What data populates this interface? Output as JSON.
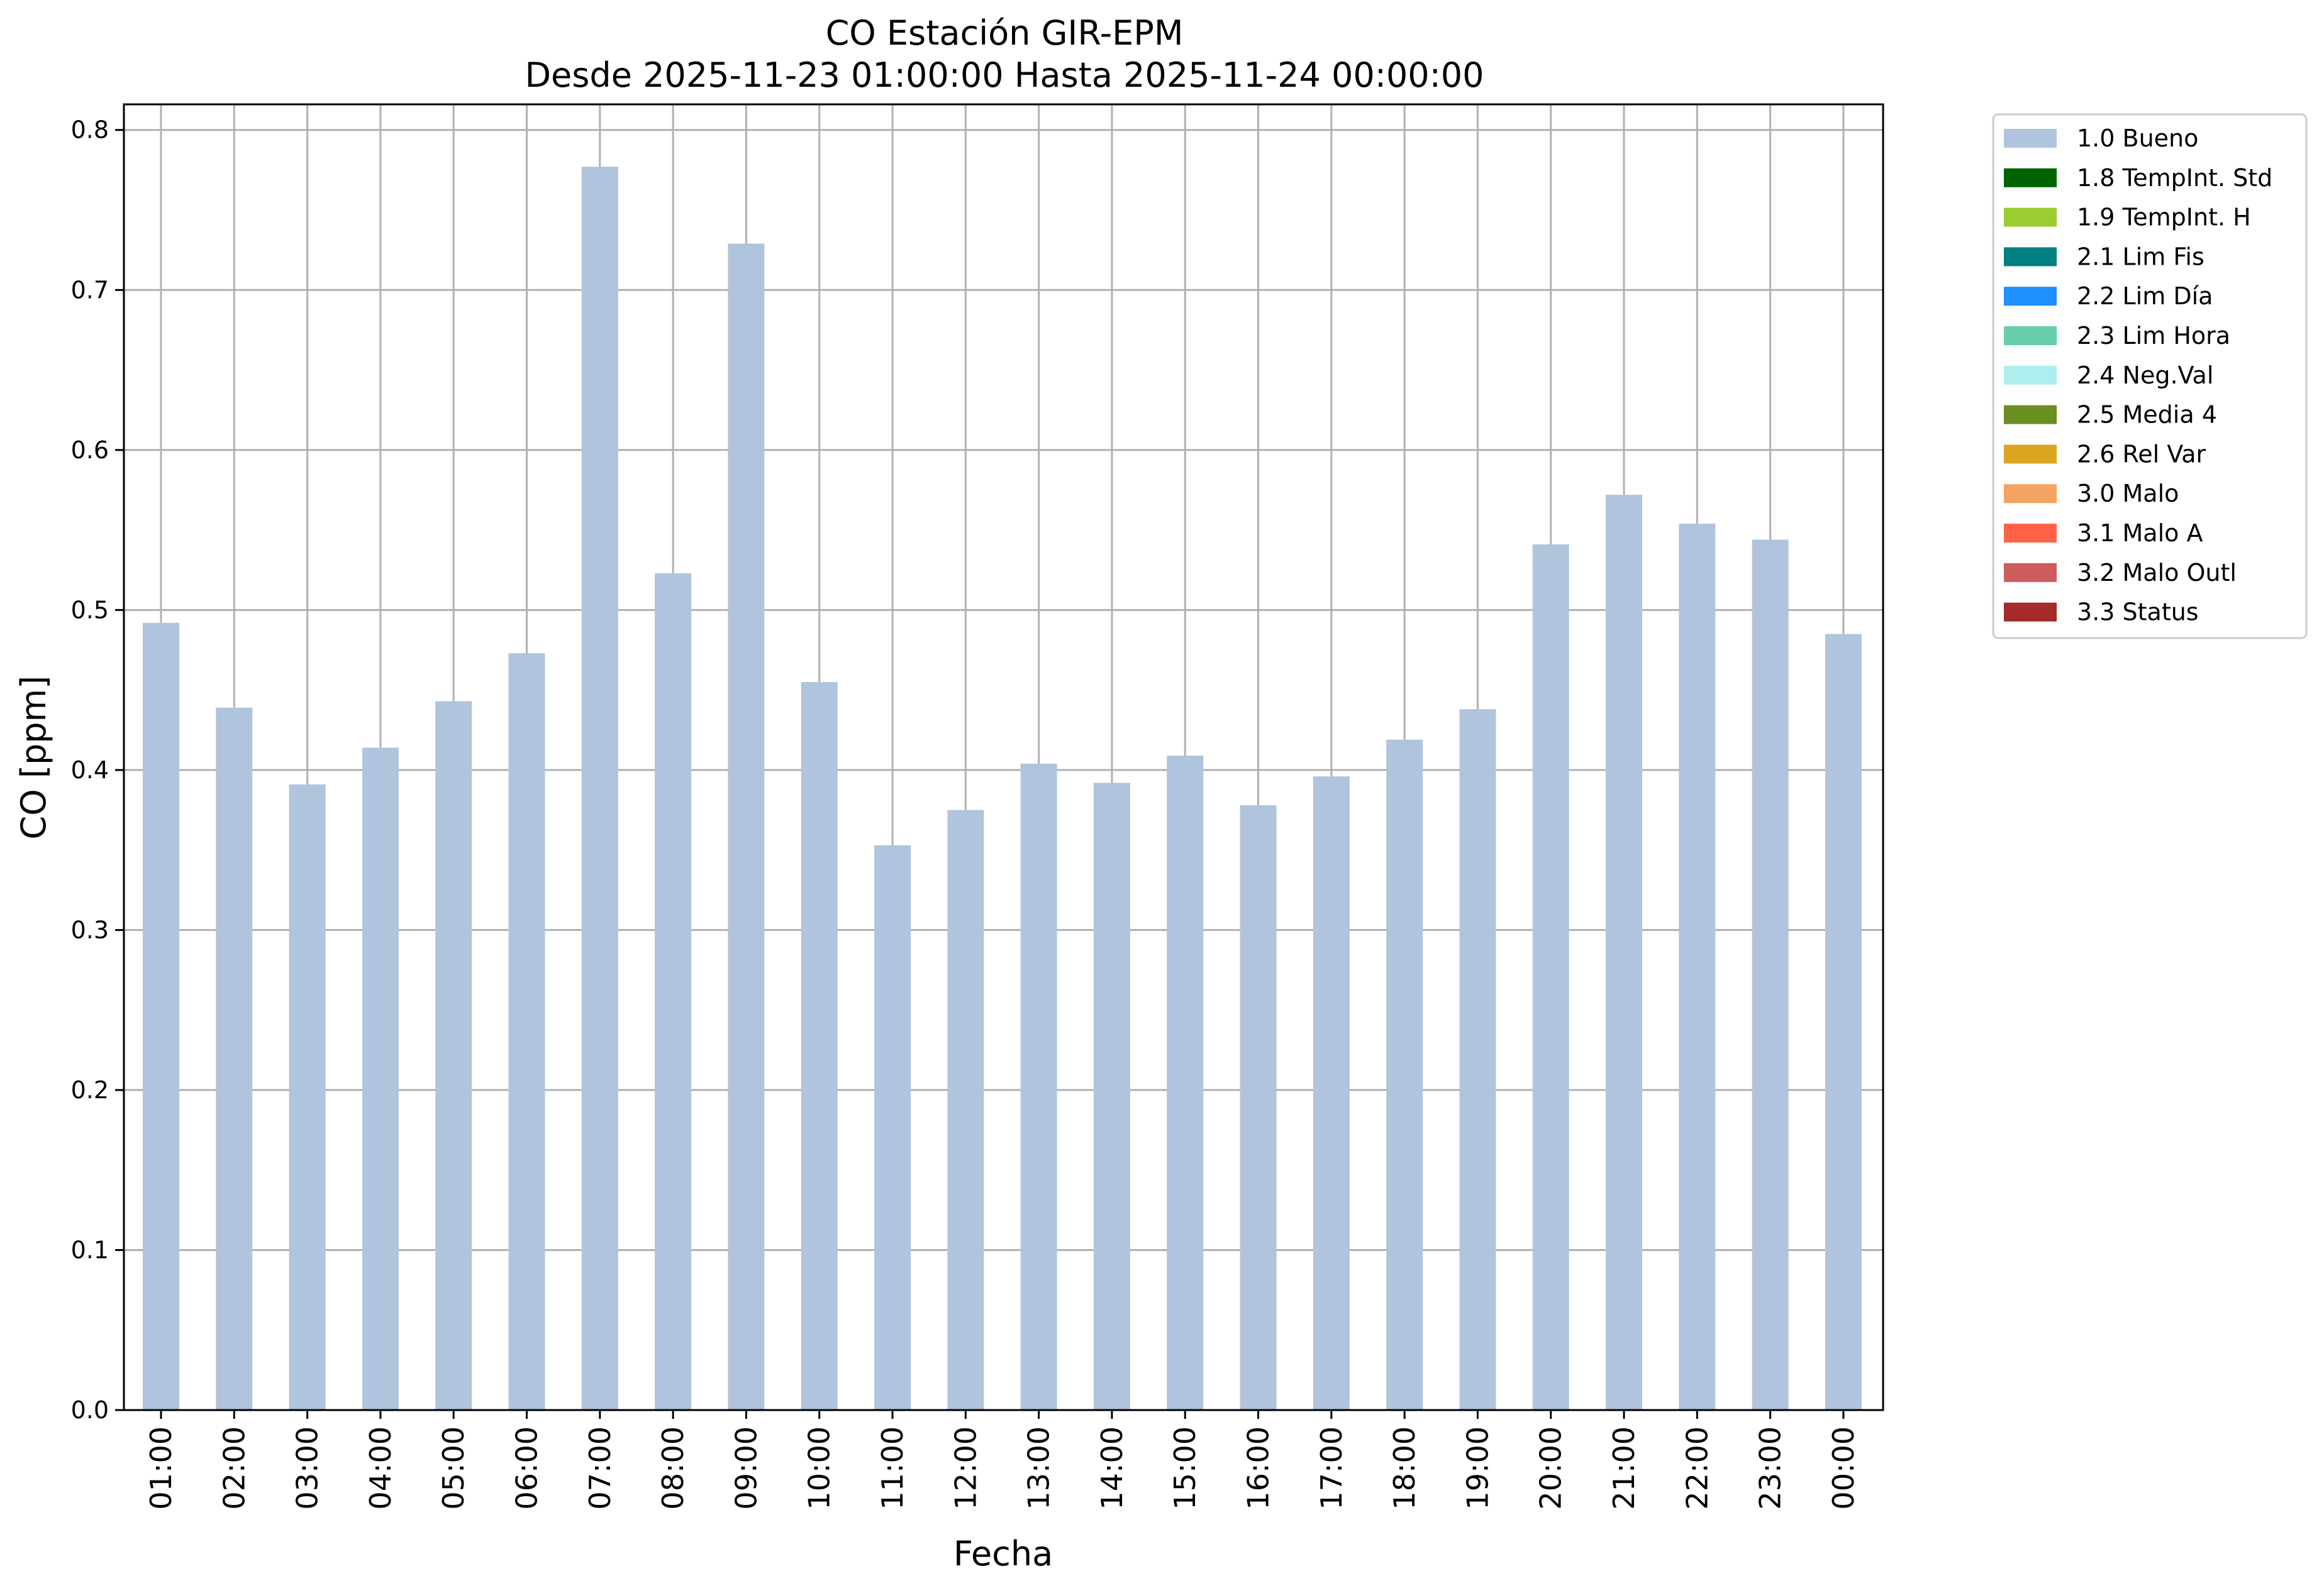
{
  "chart_data": {
    "type": "bar",
    "title": "CO Estación GIR-EPM",
    "subtitle": "Desde 2025-11-23 01:00:00 Hasta 2025-11-24 00:00:00",
    "xlabel": "Fecha",
    "ylabel": "CO [ppm]",
    "ylim": [
      0,
      0.816
    ],
    "yticks": [
      "0.0",
      "0.1",
      "0.2",
      "0.3",
      "0.4",
      "0.5",
      "0.6",
      "0.7",
      "0.8"
    ],
    "grid": true,
    "legend_position": "outside upper right",
    "categories": [
      "01:00",
      "02:00",
      "03:00",
      "04:00",
      "05:00",
      "06:00",
      "07:00",
      "08:00",
      "09:00",
      "10:00",
      "11:00",
      "12:00",
      "13:00",
      "14:00",
      "15:00",
      "16:00",
      "17:00",
      "18:00",
      "19:00",
      "20:00",
      "21:00",
      "22:00",
      "23:00",
      "00:00"
    ],
    "series": [
      {
        "name": "1.0 Bueno",
        "color": "#b0c4de",
        "values": [
          0.492,
          0.439,
          0.391,
          0.414,
          0.443,
          0.473,
          0.777,
          0.523,
          0.729,
          0.455,
          0.353,
          0.375,
          0.404,
          0.392,
          0.409,
          0.378,
          0.396,
          0.419,
          0.438,
          0.541,
          0.572,
          0.554,
          0.544,
          0.485
        ]
      }
    ],
    "legend": [
      {
        "label": "1.0 Bueno",
        "color": "#b0c4de"
      },
      {
        "label": "1.8 TempInt. Std",
        "color": "#006400"
      },
      {
        "label": "1.9 TempInt. H",
        "color": "#9acd32"
      },
      {
        "label": "2.1 Lim Fis",
        "color": "#008080"
      },
      {
        "label": "2.2 Lim Día",
        "color": "#1e90ff"
      },
      {
        "label": "2.3 Lim Hora",
        "color": "#66cdaa"
      },
      {
        "label": "2.4 Neg.Val",
        "color": "#afeeee"
      },
      {
        "label": "2.5 Media 4",
        "color": "#6b8e23"
      },
      {
        "label": "2.6 Rel Var",
        "color": "#daa520"
      },
      {
        "label": "3.0 Malo",
        "color": "#f4a460"
      },
      {
        "label": "3.1 Malo A",
        "color": "#ff6347"
      },
      {
        "label": "3.2 Malo Outl",
        "color": "#cd5c5c"
      },
      {
        "label": "3.3 Status",
        "color": "#a52a2a"
      }
    ]
  }
}
